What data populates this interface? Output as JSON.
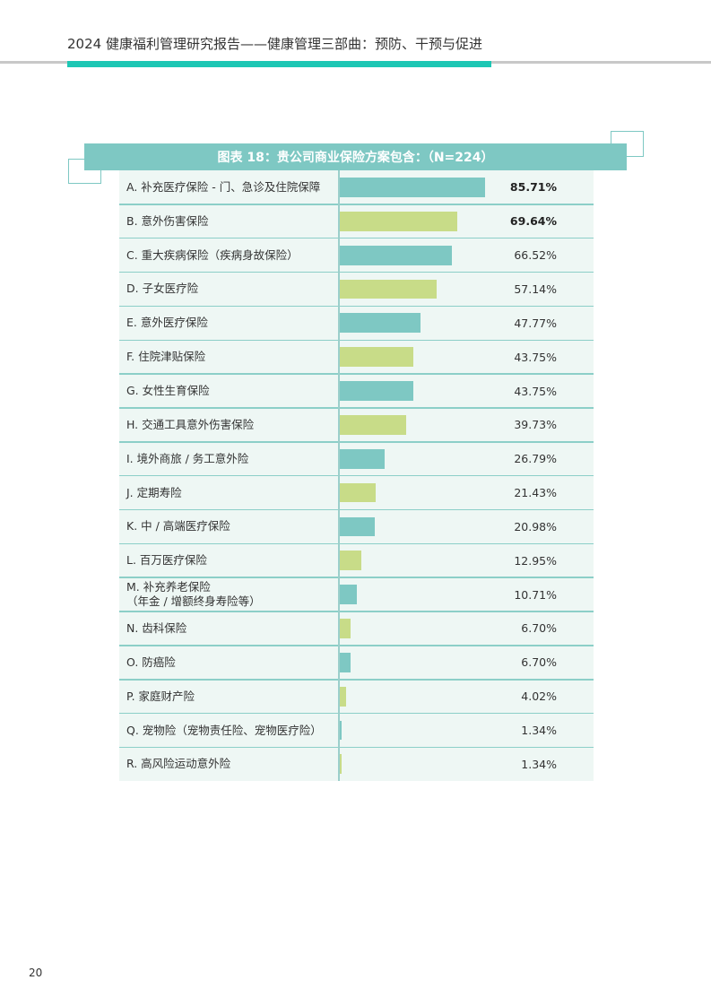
{
  "header": {
    "title": "2024 健康福利管理研究报告——健康管理三部曲：预防、干预与促进"
  },
  "figure": {
    "title": "图表 18：贵公司商业保险方案包含：（N=224）"
  },
  "colors": {
    "teal_bar": "#7ec8c3",
    "green_bar": "#c8dc88",
    "accent": "#1dc7b4"
  },
  "chart_data": {
    "type": "bar",
    "orientation": "horizontal",
    "title": "图表 18：贵公司商业保险方案包含：（N=224）",
    "unit": "%",
    "xlim": [
      0,
      100
    ],
    "categories": [
      "A. 补充医疗保险 - 门、急诊及住院保障",
      "B. 意外伤害保险",
      "C. 重大疾病保险（疾病身故保险）",
      "D. 子女医疗险",
      "E. 意外医疗保险",
      "F. 住院津贴保险",
      "G. 女性生育保险",
      "H. 交通工具意外伤害保险",
      "I. 境外商旅 / 务工意外险",
      "J. 定期寿险",
      "K. 中 / 高端医疗保险",
      "L. 百万医疗保险",
      "M. 补充养老保险\n（年金 / 增额终身寿险等）",
      "N. 齿科保险",
      "O. 防癌险",
      "P. 家庭财产险",
      "Q. 宠物险（宠物责任险、宠物医疗险）",
      "R. 高风险运动意外险"
    ],
    "values": [
      85.71,
      69.64,
      66.52,
      57.14,
      47.77,
      43.75,
      43.75,
      39.73,
      26.79,
      21.43,
      20.98,
      12.95,
      10.71,
      6.7,
      6.7,
      4.02,
      1.34,
      1.34
    ],
    "value_labels": [
      "85.71%",
      "69.64%",
      "66.52%",
      "57.14%",
      "47.77%",
      "43.75%",
      "43.75%",
      "39.73%",
      "26.79%",
      "21.43%",
      "20.98%",
      "12.95%",
      "10.71%",
      "6.70%",
      "6.70%",
      "4.02%",
      "1.34%",
      "1.34%"
    ],
    "bar_colors": [
      "#7ec8c3",
      "#c8dc88",
      "#7ec8c3",
      "#c8dc88",
      "#7ec8c3",
      "#c8dc88",
      "#7ec8c3",
      "#c8dc88",
      "#7ec8c3",
      "#c8dc88",
      "#7ec8c3",
      "#c8dc88",
      "#7ec8c3",
      "#c8dc88",
      "#7ec8c3",
      "#c8dc88",
      "#7ec8c3",
      "#c8dc88"
    ],
    "bold_rows": [
      0,
      1
    ],
    "grid": false
  },
  "footer": {
    "page_number": "20"
  }
}
